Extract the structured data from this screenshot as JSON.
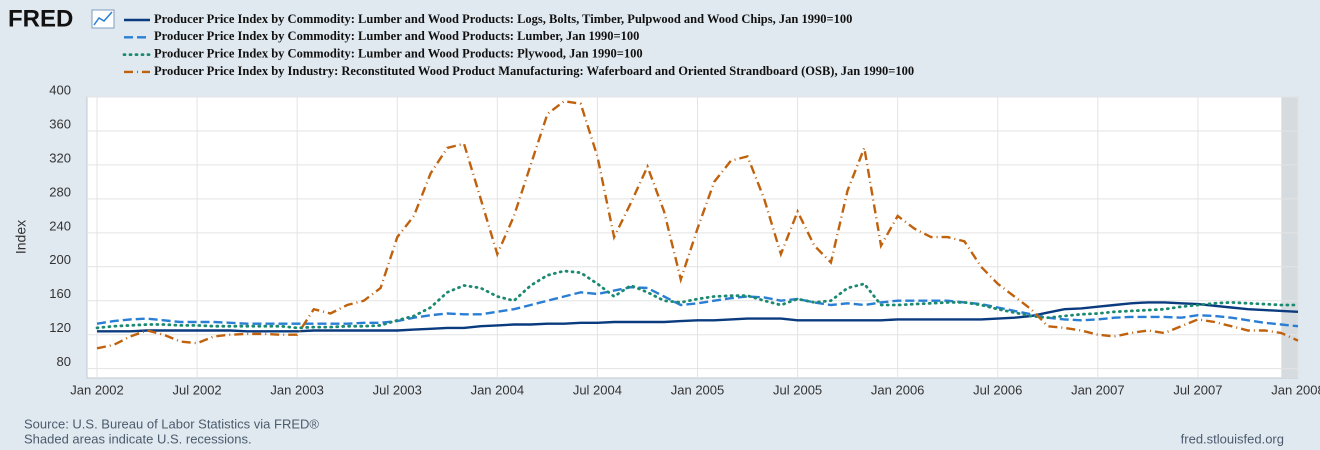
{
  "chart_data": {
    "type": "line",
    "logo": "FRED",
    "y_label": "Index",
    "source": "Source: U.S. Bureau of Labor Statistics via FRED®",
    "note": "Shaded areas indicate U.S. recessions.",
    "url": "fred.stlouisfed.org",
    "xlim": [
      "2002-01",
      "2008-01"
    ],
    "ylim": [
      69,
      400
    ],
    "yticks": [
      80,
      120,
      160,
      200,
      240,
      280,
      320,
      360,
      400
    ],
    "grid": true,
    "xticks": [
      {
        "value": "2002-01",
        "label": "Jan 2002"
      },
      {
        "value": "2002-07",
        "label": "Jul 2002"
      },
      {
        "value": "2003-01",
        "label": "Jan 2003"
      },
      {
        "value": "2003-07",
        "label": "Jul 2003"
      },
      {
        "value": "2004-01",
        "label": "Jan 2004"
      },
      {
        "value": "2004-07",
        "label": "Jul 2004"
      },
      {
        "value": "2005-01",
        "label": "Jan 2005"
      },
      {
        "value": "2005-07",
        "label": "Jul 2005"
      },
      {
        "value": "2006-01",
        "label": "Jan 2006"
      },
      {
        "value": "2006-07",
        "label": "Jul 2006"
      },
      {
        "value": "2007-01",
        "label": "Jan 2007"
      },
      {
        "value": "2007-07",
        "label": "Jul 2007"
      },
      {
        "value": "2008-01",
        "label": "Jan 2008"
      }
    ],
    "recessions": [
      {
        "start": "2007-12",
        "end": "2008-01"
      }
    ],
    "x": [
      "2002-01",
      "2002-02",
      "2002-03",
      "2002-04",
      "2002-05",
      "2002-06",
      "2002-07",
      "2002-08",
      "2002-09",
      "2002-10",
      "2002-11",
      "2002-12",
      "2003-01",
      "2003-02",
      "2003-03",
      "2003-04",
      "2003-05",
      "2003-06",
      "2003-07",
      "2003-08",
      "2003-09",
      "2003-10",
      "2003-11",
      "2003-12",
      "2004-01",
      "2004-02",
      "2004-03",
      "2004-04",
      "2004-05",
      "2004-06",
      "2004-07",
      "2004-08",
      "2004-09",
      "2004-10",
      "2004-11",
      "2004-12",
      "2005-01",
      "2005-02",
      "2005-03",
      "2005-04",
      "2005-05",
      "2005-06",
      "2005-07",
      "2005-08",
      "2005-09",
      "2005-10",
      "2005-11",
      "2005-12",
      "2006-01",
      "2006-02",
      "2006-03",
      "2006-04",
      "2006-05",
      "2006-06",
      "2006-07",
      "2006-08",
      "2006-09",
      "2006-10",
      "2006-11",
      "2006-12",
      "2007-01",
      "2007-02",
      "2007-03",
      "2007-04",
      "2007-05",
      "2007-06",
      "2007-07",
      "2007-08",
      "2007-09",
      "2007-10",
      "2007-11",
      "2007-12",
      "2008-01"
    ],
    "series": [
      {
        "name": "Producer Price Index by Commodity: Lumber and Wood Products: Logs, Bolts, Timber, Pulpwood and Wood Chips, Jan 1990=100",
        "color": "#0b3b7f",
        "style": "solid",
        "values": [
          124,
          124,
          124,
          125,
          125,
          125,
          125,
          125,
          125,
          124,
          124,
          124,
          124,
          125,
          125,
          125,
          125,
          125,
          125,
          126,
          127,
          128,
          128,
          130,
          131,
          132,
          132,
          133,
          133,
          134,
          134,
          135,
          135,
          135,
          135,
          136,
          137,
          137,
          138,
          139,
          139,
          139,
          137,
          137,
          137,
          137,
          137,
          137,
          138,
          138,
          138,
          138,
          138,
          138,
          139,
          140,
          142,
          146,
          150,
          151,
          153,
          155,
          157,
          158,
          158,
          157,
          156,
          154,
          152,
          150,
          149,
          148,
          147
        ]
      },
      {
        "name": "Producer Price Index by Commodity: Lumber and Wood Products: Lumber, Jan 1990=100",
        "color": "#2a7fd4",
        "style": "dashed",
        "values": [
          133,
          136,
          138,
          139,
          137,
          135,
          135,
          135,
          134,
          133,
          133,
          133,
          133,
          133,
          133,
          133,
          134,
          134,
          136,
          140,
          143,
          145,
          144,
          144,
          147,
          150,
          155,
          160,
          165,
          170,
          168,
          172,
          176,
          175,
          165,
          155,
          157,
          160,
          163,
          165,
          164,
          160,
          162,
          158,
          155,
          157,
          155,
          158,
          160,
          160,
          160,
          160,
          158,
          156,
          152,
          148,
          144,
          140,
          138,
          137,
          138,
          140,
          141,
          141,
          141,
          140,
          143,
          142,
          140,
          137,
          134,
          132,
          130
        ]
      },
      {
        "name": "Producer Price Index by Commodity: Lumber and Wood Products: Plywood, Jan 1990=100",
        "color": "#1b8a70",
        "style": "dotted",
        "values": [
          128,
          130,
          131,
          132,
          132,
          131,
          131,
          130,
          130,
          130,
          130,
          130,
          128,
          129,
          129,
          130,
          130,
          131,
          137,
          142,
          152,
          170,
          178,
          175,
          165,
          160,
          178,
          190,
          195,
          193,
          180,
          165,
          178,
          170,
          160,
          158,
          162,
          165,
          166,
          166,
          160,
          155,
          162,
          158,
          160,
          175,
          180,
          155,
          155,
          156,
          157,
          158,
          158,
          155,
          150,
          146,
          142,
          140,
          142,
          144,
          145,
          147,
          148,
          149,
          150,
          153,
          155,
          157,
          158,
          157,
          156,
          155,
          155
        ]
      },
      {
        "name": "Producer Price Index by Industry: Reconstituted Wood Product Manufacturing: Waferboard and Oriented Strandboard (OSB), Jan 1990=100",
        "color": "#c0620d",
        "style": "dashdot",
        "values": [
          104,
          108,
          118,
          125,
          120,
          112,
          110,
          118,
          120,
          121,
          121,
          120,
          120,
          150,
          145,
          155,
          160,
          175,
          235,
          260,
          310,
          340,
          345,
          280,
          215,
          260,
          320,
          380,
          395,
          392,
          330,
          235,
          275,
          318,
          265,
          185,
          245,
          300,
          325,
          330,
          280,
          215,
          265,
          225,
          205,
          290,
          340,
          225,
          260,
          245,
          235,
          235,
          230,
          200,
          180,
          165,
          150,
          130,
          128,
          125,
          120,
          118,
          122,
          125,
          122,
          130,
          138,
          135,
          130,
          125,
          125,
          122,
          113
        ]
      }
    ]
  }
}
